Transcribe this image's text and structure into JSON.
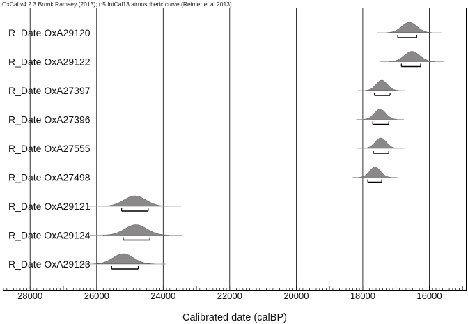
{
  "header": "OxCal v4.2.3 Bronk Ramsey (2013); r:5 IntCal13 atmospheric curve (Reimer et al 2013)",
  "chart_data": {
    "type": "probability-distribution",
    "xlabel": "Calibrated date (calBP)",
    "x_reversed": true,
    "xlim": [
      28800,
      14900
    ],
    "xticks": [
      28000,
      26000,
      24000,
      22000,
      20000,
      18000,
      16000
    ],
    "grid_vertical": true,
    "series": [
      {
        "name": "R_Date OxA29120",
        "peak": 16600,
        "sigma": 230,
        "range": [
          16950,
          16380
        ]
      },
      {
        "name": "R_Date OxA29122",
        "peak": 16520,
        "sigma": 230,
        "range": [
          16840,
          16260
        ]
      },
      {
        "name": "R_Date OxA27397",
        "peak": 17430,
        "sigma": 170,
        "range": [
          17650,
          17180
        ]
      },
      {
        "name": "R_Date OxA27396",
        "peak": 17480,
        "sigma": 170,
        "range": [
          17700,
          17220
        ]
      },
      {
        "name": "R_Date OxA27555",
        "peak": 17460,
        "sigma": 170,
        "range": [
          17680,
          17220
        ]
      },
      {
        "name": "R_Date OxA27498",
        "peak": 17630,
        "sigma": 160,
        "range": [
          17850,
          17430
        ]
      },
      {
        "name": "R_Date OxA29121",
        "peak": 24850,
        "sigma": 330,
        "range": [
          25250,
          24450
        ]
      },
      {
        "name": "R_Date OxA29124",
        "peak": 24820,
        "sigma": 330,
        "range": [
          25200,
          24400
        ]
      },
      {
        "name": "R_Date OxA29123",
        "peak": 25200,
        "sigma": 310,
        "range": [
          25550,
          24750
        ]
      }
    ]
  }
}
